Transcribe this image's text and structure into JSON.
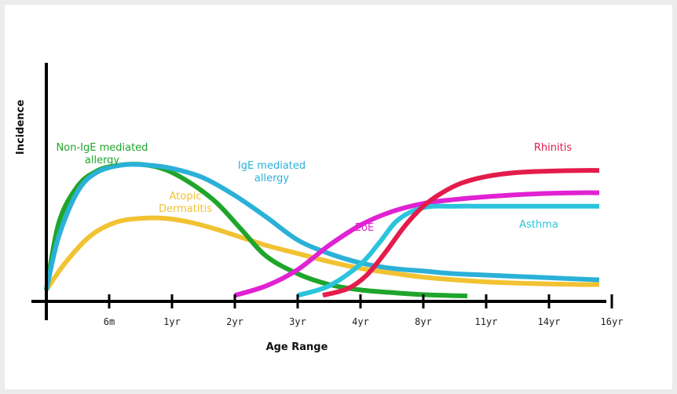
{
  "chart_data": {
    "type": "line",
    "title": "",
    "xlabel": "Age Range",
    "ylabel": "Incidence",
    "categories": [
      "6m",
      "1yr",
      "2yr",
      "3yr",
      "4yr",
      "8yr",
      "11yr",
      "14yr",
      "16yr"
    ],
    "xlim": [
      0,
      9
    ],
    "ylim": [
      0,
      100
    ],
    "grid": false,
    "legend": "inline labels next to curves",
    "series": [
      {
        "name": "Non-IgE mediated allergy",
        "label_lines": [
          "Non-IgE mediated",
          "allergy"
        ],
        "color": "#1fa52b",
        "x": [
          0,
          0.2,
          0.5,
          0.8,
          1.1,
          1.5,
          1.9,
          2.3,
          2.7,
          3.1,
          3.5,
          4.0,
          4.5,
          5.0,
          5.5,
          6.0,
          6.7
        ],
        "y": [
          5,
          55,
          82,
          93,
          97,
          98,
          94,
          84,
          70,
          50,
          30,
          17,
          9,
          5,
          3,
          1.5,
          0.5
        ]
      },
      {
        "name": "IgE mediated allergy",
        "label_lines": [
          "IgE mediated",
          "allergy"
        ],
        "color": "#2bb1d8",
        "x": [
          0,
          0.2,
          0.5,
          0.8,
          1.2,
          1.6,
          2.0,
          2.5,
          3.0,
          3.5,
          4.0,
          4.5,
          5.0,
          5.5,
          6.0,
          6.5,
          7.0,
          7.5,
          8.0,
          8.5,
          8.8
        ],
        "y": [
          5,
          45,
          78,
          92,
          97.5,
          97.5,
          95,
          88,
          75,
          59,
          42,
          32,
          25,
          21,
          19,
          17,
          16,
          15,
          14,
          13,
          12.5
        ]
      },
      {
        "name": "Atopic Dermatitis",
        "label_lines": [
          "Atopic",
          "Dermatitis"
        ],
        "color": "#f1c232",
        "x": [
          0,
          0.3,
          0.7,
          1.1,
          1.5,
          1.9,
          2.3,
          2.7,
          3.1,
          3.5,
          4.0,
          4.5,
          5.0,
          5.5,
          6.0,
          6.5,
          7.0,
          7.5,
          8.0,
          8.5,
          8.8
        ],
        "y": [
          5,
          25,
          45,
          55,
          58,
          58,
          55,
          50,
          44,
          38,
          32,
          26,
          21,
          17.5,
          14.5,
          12.5,
          11,
          10,
          9.5,
          9,
          9
        ]
      },
      {
        "name": "EoE",
        "label_lines": [
          "EoE"
        ],
        "color": "#e022d2",
        "x": [
          3.0,
          3.5,
          4.0,
          4.5,
          5.0,
          5.5,
          6.0,
          6.5,
          7.0,
          7.5,
          8.0,
          8.5,
          8.8
        ],
        "y": [
          1,
          8,
          20,
          38,
          53,
          63,
          69,
          72,
          74,
          75.5,
          76.5,
          77,
          77
        ]
      },
      {
        "name": "Asthma",
        "label_lines": [
          "Asthma"
        ],
        "color": "#2bc4dc",
        "x": [
          4.0,
          4.5,
          5.0,
          5.3,
          5.6,
          6.0,
          6.5,
          7.0,
          7.5,
          8.0,
          8.5,
          8.8
        ],
        "y": [
          1,
          8,
          24,
          40,
          57,
          66,
          67,
          67,
          67,
          67,
          67,
          67
        ]
      },
      {
        "name": "Rhinitis",
        "label_lines": [
          "Rhinitis"
        ],
        "color": "#e31c4b",
        "x": [
          4.4,
          4.8,
          5.1,
          5.4,
          5.7,
          6.0,
          6.3,
          6.6,
          7.0,
          7.5,
          8.0,
          8.5,
          8.8
        ],
        "y": [
          1,
          6,
          16,
          33,
          52,
          67,
          77,
          84,
          89,
          92,
          93,
          93.5,
          93.5
        ]
      }
    ]
  }
}
